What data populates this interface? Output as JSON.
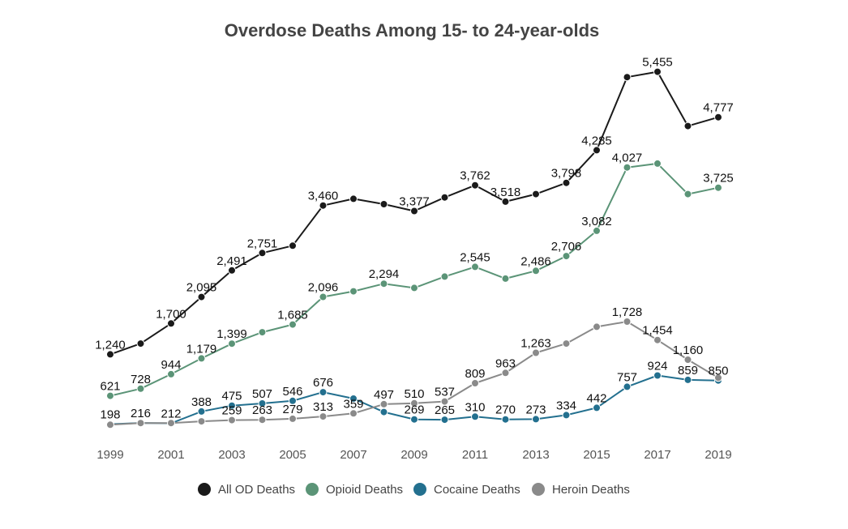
{
  "chart_data": {
    "type": "line",
    "title": "Overdose Deaths Among 15- to 24-year-olds",
    "xlabel": "",
    "ylabel": "",
    "x": [
      1999,
      2000,
      2001,
      2002,
      2003,
      2004,
      2005,
      2006,
      2007,
      2008,
      2009,
      2010,
      2011,
      2012,
      2013,
      2014,
      2015,
      2016,
      2017,
      2018,
      2019
    ],
    "x_tick_labels": [
      "1999",
      "2001",
      "2003",
      "2005",
      "2007",
      "2009",
      "2011",
      "2013",
      "2015",
      "2017",
      "2019"
    ],
    "ylim": [
      0,
      5800
    ],
    "grid": false,
    "legend_position": "bottom",
    "series": [
      {
        "name": "All OD Deaths",
        "color": "#1a1a1a",
        "values": [
          1240,
          1400,
          1700,
          2095,
          2491,
          2751,
          2860,
          3460,
          3560,
          3480,
          3377,
          3580,
          3762,
          3518,
          3630,
          3798,
          4285,
          5375,
          5455,
          4645,
          4777
        ],
        "labels": [
          "1,240",
          "",
          "1,700",
          "2,095",
          "2,491",
          "2,751",
          "",
          "3,460",
          "",
          "",
          "3,377",
          "",
          "3,762",
          "3,518",
          "",
          "3,798",
          "4,285",
          "",
          "5,455",
          "",
          "4,777"
        ]
      },
      {
        "name": "Opioid Deaths",
        "color": "#5b9477",
        "values": [
          621,
          728,
          944,
          1179,
          1399,
          1570,
          1685,
          2096,
          2180,
          2294,
          2230,
          2400,
          2545,
          2370,
          2486,
          2706,
          3082,
          4027,
          4085,
          3630,
          3725
        ],
        "labels": [
          "621",
          "728",
          "944",
          "1,179",
          "1,399",
          "",
          "1,685",
          "2,096",
          "",
          "2,294",
          "",
          "",
          "2,545",
          "",
          "2,486",
          "2,706",
          "3,082",
          "4,027",
          "",
          "",
          "3,725"
        ]
      },
      {
        "name": "Cocaine Deaths",
        "color": "#23708f",
        "values": [
          198,
          216,
          212,
          388,
          475,
          507,
          546,
          676,
          580,
          380,
          269,
          265,
          310,
          270,
          273,
          334,
          442,
          757,
          924,
          859,
          850
        ],
        "labels": [
          "198",
          "216",
          "212",
          "388",
          "475",
          "507",
          "546",
          "676",
          "",
          "",
          "269",
          "265",
          "310",
          "270",
          "273",
          "334",
          "442",
          "757",
          "924",
          "859",
          "850"
        ]
      },
      {
        "name": "Heroin Deaths",
        "color": "#8a8a8a",
        "values": [
          190,
          215,
          215,
          240,
          259,
          263,
          279,
          313,
          359,
          497,
          510,
          537,
          809,
          963,
          1263,
          1400,
          1650,
          1728,
          1454,
          1160,
          890
        ],
        "labels": [
          "",
          "",
          "",
          "",
          "259",
          "263",
          "279",
          "313",
          "359",
          "497",
          "510",
          "537",
          "809",
          "963",
          "1,263",
          "",
          "",
          "1,728",
          "1,454",
          "1,160",
          ""
        ]
      }
    ]
  }
}
